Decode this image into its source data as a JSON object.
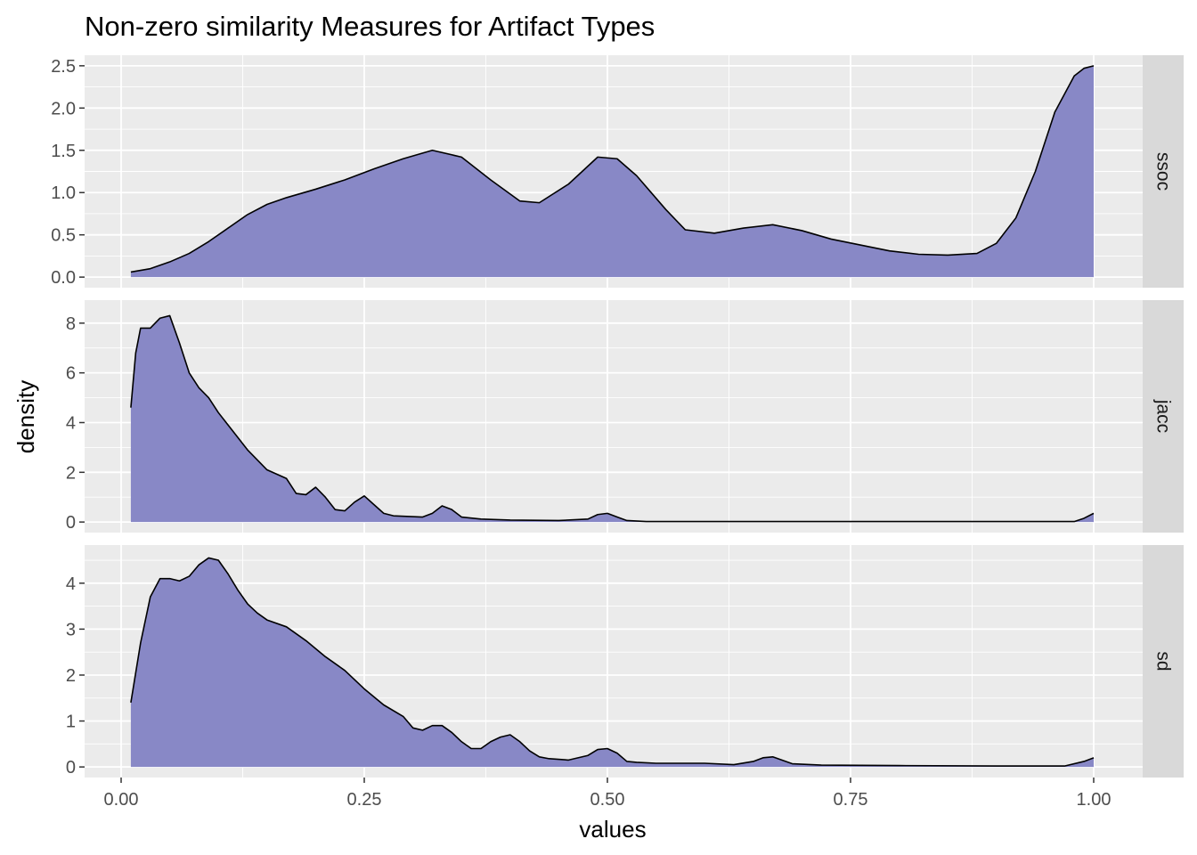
{
  "chart_data": {
    "type": "area",
    "title": "Non-zero similarity Measures for Artifact Types",
    "xlabel": "values",
    "ylabel": "density",
    "xlim": [
      0,
      1
    ],
    "x_ticks": [
      "0.00",
      "0.25",
      "0.50",
      "0.75",
      "1.00"
    ],
    "grid": true,
    "fill_color": "#8888c6",
    "line_color": "#000000",
    "panel_bg": "#ebebeb",
    "strip_bg": "#d9d9d9",
    "facets": [
      {
        "label": "ssoc",
        "ylim": [
          0,
          2.5
        ],
        "y_ticks": [
          "0.0",
          "0.5",
          "1.0",
          "1.5",
          "2.0",
          "2.5"
        ],
        "x": [
          0.01,
          0.03,
          0.05,
          0.07,
          0.09,
          0.11,
          0.13,
          0.15,
          0.17,
          0.2,
          0.23,
          0.26,
          0.29,
          0.32,
          0.35,
          0.38,
          0.41,
          0.43,
          0.46,
          0.49,
          0.51,
          0.53,
          0.56,
          0.58,
          0.61,
          0.64,
          0.67,
          0.7,
          0.73,
          0.76,
          0.79,
          0.82,
          0.85,
          0.88,
          0.9,
          0.92,
          0.94,
          0.96,
          0.98,
          0.99,
          1.0
        ],
        "y": [
          0.06,
          0.1,
          0.18,
          0.28,
          0.42,
          0.58,
          0.74,
          0.86,
          0.94,
          1.04,
          1.15,
          1.28,
          1.4,
          1.5,
          1.42,
          1.15,
          0.9,
          0.88,
          1.1,
          1.42,
          1.4,
          1.2,
          0.8,
          0.56,
          0.52,
          0.58,
          0.62,
          0.55,
          0.45,
          0.38,
          0.31,
          0.27,
          0.26,
          0.28,
          0.4,
          0.7,
          1.25,
          1.95,
          2.38,
          2.47,
          2.5
        ]
      },
      {
        "label": "jacc",
        "ylim": [
          0,
          8.5
        ],
        "y_ticks": [
          "0",
          "2",
          "4",
          "6",
          "8"
        ],
        "x": [
          0.01,
          0.015,
          0.02,
          0.03,
          0.04,
          0.05,
          0.06,
          0.07,
          0.08,
          0.09,
          0.1,
          0.11,
          0.13,
          0.15,
          0.17,
          0.18,
          0.19,
          0.2,
          0.21,
          0.22,
          0.23,
          0.24,
          0.25,
          0.26,
          0.27,
          0.28,
          0.31,
          0.32,
          0.33,
          0.34,
          0.35,
          0.37,
          0.4,
          0.45,
          0.48,
          0.49,
          0.5,
          0.51,
          0.52,
          0.54,
          0.6,
          0.7,
          0.8,
          0.9,
          0.98,
          0.99,
          1.0
        ],
        "y": [
          4.6,
          6.8,
          7.8,
          7.8,
          8.2,
          8.3,
          7.2,
          6.0,
          5.4,
          5.0,
          4.4,
          3.9,
          2.9,
          2.1,
          1.75,
          1.15,
          1.1,
          1.4,
          1.0,
          0.5,
          0.45,
          0.8,
          1.05,
          0.7,
          0.35,
          0.25,
          0.2,
          0.35,
          0.65,
          0.5,
          0.2,
          0.12,
          0.08,
          0.06,
          0.12,
          0.3,
          0.35,
          0.2,
          0.06,
          0.02,
          0.02,
          0.02,
          0.02,
          0.02,
          0.02,
          0.15,
          0.35
        ]
      },
      {
        "label": "sd",
        "ylim": [
          0,
          4.6
        ],
        "y_ticks": [
          "0",
          "1",
          "2",
          "3",
          "4"
        ],
        "x": [
          0.01,
          0.02,
          0.03,
          0.04,
          0.05,
          0.06,
          0.07,
          0.08,
          0.09,
          0.1,
          0.11,
          0.12,
          0.13,
          0.14,
          0.15,
          0.17,
          0.19,
          0.21,
          0.23,
          0.25,
          0.27,
          0.29,
          0.3,
          0.31,
          0.32,
          0.33,
          0.34,
          0.35,
          0.36,
          0.37,
          0.38,
          0.39,
          0.4,
          0.41,
          0.42,
          0.43,
          0.44,
          0.46,
          0.48,
          0.49,
          0.5,
          0.51,
          0.52,
          0.53,
          0.55,
          0.6,
          0.63,
          0.65,
          0.66,
          0.67,
          0.69,
          0.72,
          0.8,
          0.9,
          0.97,
          0.99,
          1.0
        ],
        "y": [
          1.4,
          2.7,
          3.7,
          4.1,
          4.1,
          4.05,
          4.15,
          4.4,
          4.55,
          4.5,
          4.2,
          3.85,
          3.55,
          3.35,
          3.2,
          3.05,
          2.75,
          2.4,
          2.1,
          1.7,
          1.35,
          1.1,
          0.85,
          0.8,
          0.9,
          0.9,
          0.75,
          0.55,
          0.4,
          0.4,
          0.55,
          0.65,
          0.7,
          0.55,
          0.35,
          0.22,
          0.18,
          0.15,
          0.25,
          0.38,
          0.4,
          0.3,
          0.12,
          0.1,
          0.08,
          0.08,
          0.05,
          0.12,
          0.2,
          0.22,
          0.07,
          0.04,
          0.03,
          0.02,
          0.02,
          0.12,
          0.2
        ]
      }
    ]
  }
}
